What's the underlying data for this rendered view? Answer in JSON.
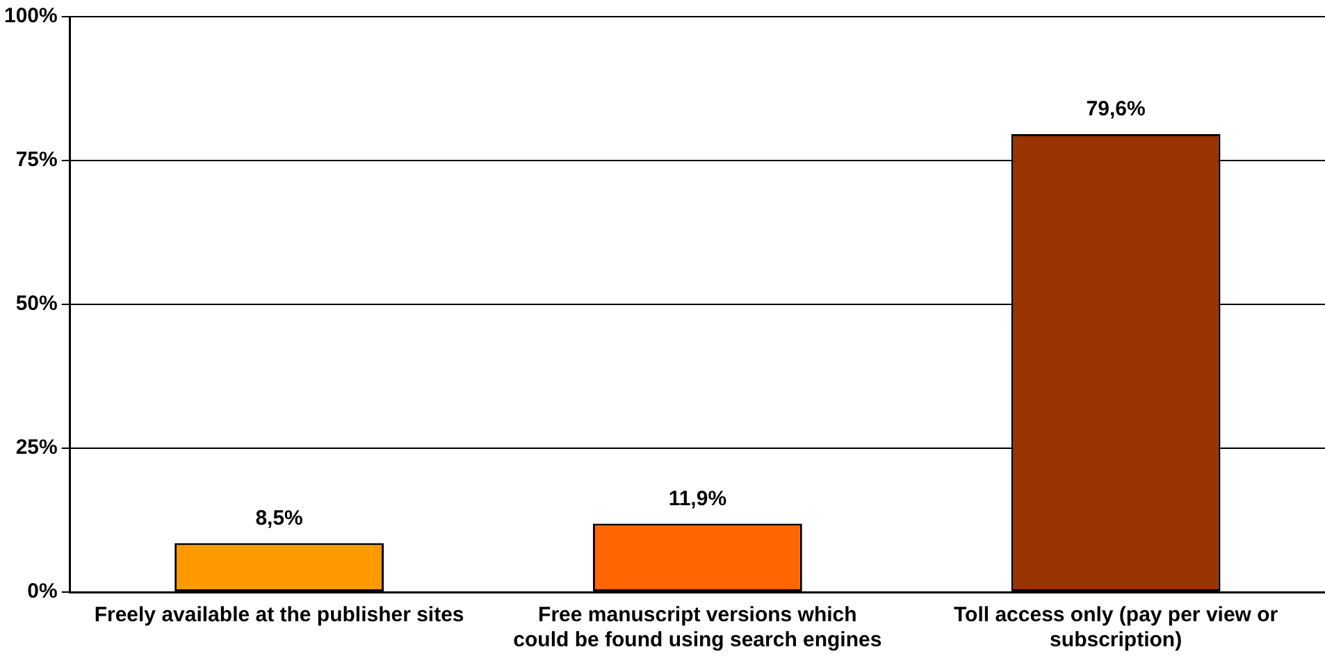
{
  "chart_data": {
    "type": "bar",
    "categories": [
      "Freely available at the publisher sites",
      "Free manuscript versions which could be found using search engines",
      "Toll access only (pay per view or subscription)"
    ],
    "values": [
      8.5,
      11.9,
      79.6
    ],
    "colors": [
      "#ff9900",
      "#ff6600",
      "#993300"
    ],
    "value_labels": [
      "8,5%",
      "11,9%",
      "79,6%"
    ],
    "ylim": [
      0,
      100
    ],
    "yticks": [
      {
        "value": 0,
        "label": "0%"
      },
      {
        "value": 25,
        "label": "25%"
      },
      {
        "value": 50,
        "label": "50%"
      },
      {
        "value": 75,
        "label": "75%"
      },
      {
        "value": 100,
        "label": "100%"
      }
    ],
    "grid": "y",
    "legend": false
  }
}
